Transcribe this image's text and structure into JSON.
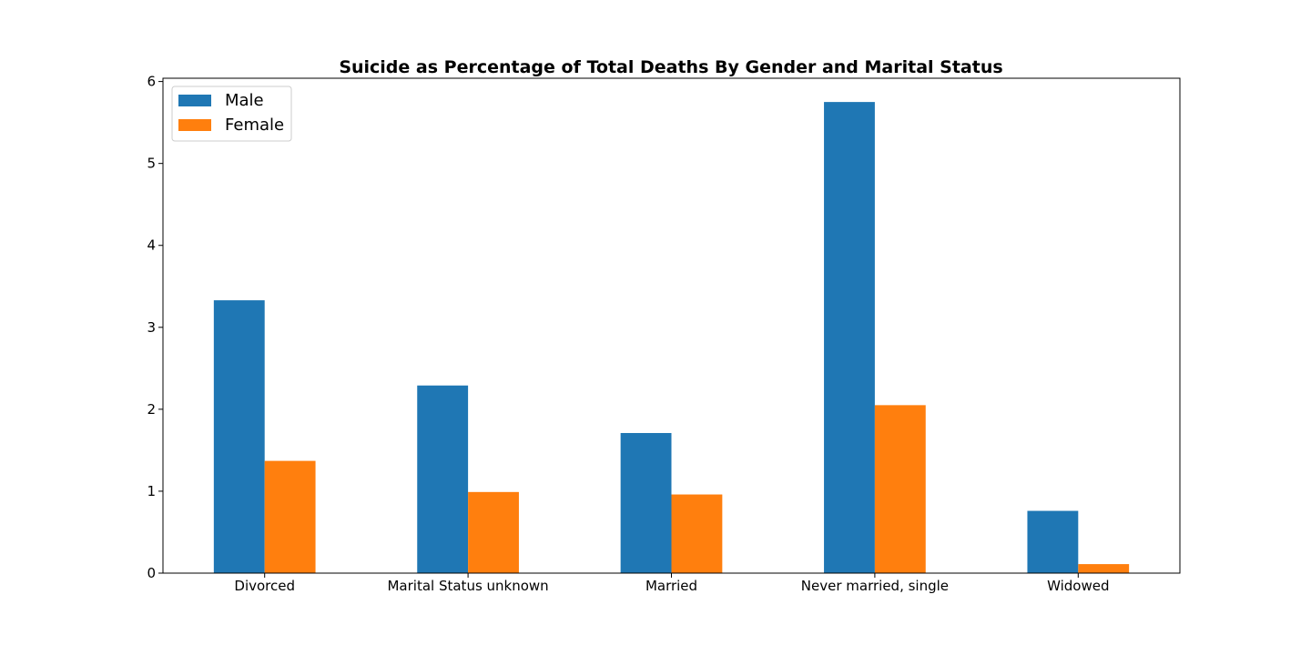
{
  "chart_data": {
    "type": "bar",
    "title": "Suicide as Percentage of Total Deaths By Gender and Marital Status",
    "xlabel": "",
    "ylabel": "",
    "categories": [
      "Divorced",
      "Marital Status unknown",
      "Married",
      "Never married, single",
      "Widowed"
    ],
    "series": [
      {
        "name": "Male",
        "color": "#1f77b4",
        "values": [
          3.33,
          2.29,
          1.71,
          5.75,
          0.76
        ]
      },
      {
        "name": "Female",
        "color": "#ff7f0e",
        "values": [
          1.37,
          0.99,
          0.96,
          2.05,
          0.11
        ]
      }
    ],
    "ylim": [
      0,
      6.04
    ],
    "yticks": [
      0,
      1,
      2,
      3,
      4,
      5,
      6
    ],
    "grid": false,
    "legend": {
      "position": "top-left"
    }
  }
}
